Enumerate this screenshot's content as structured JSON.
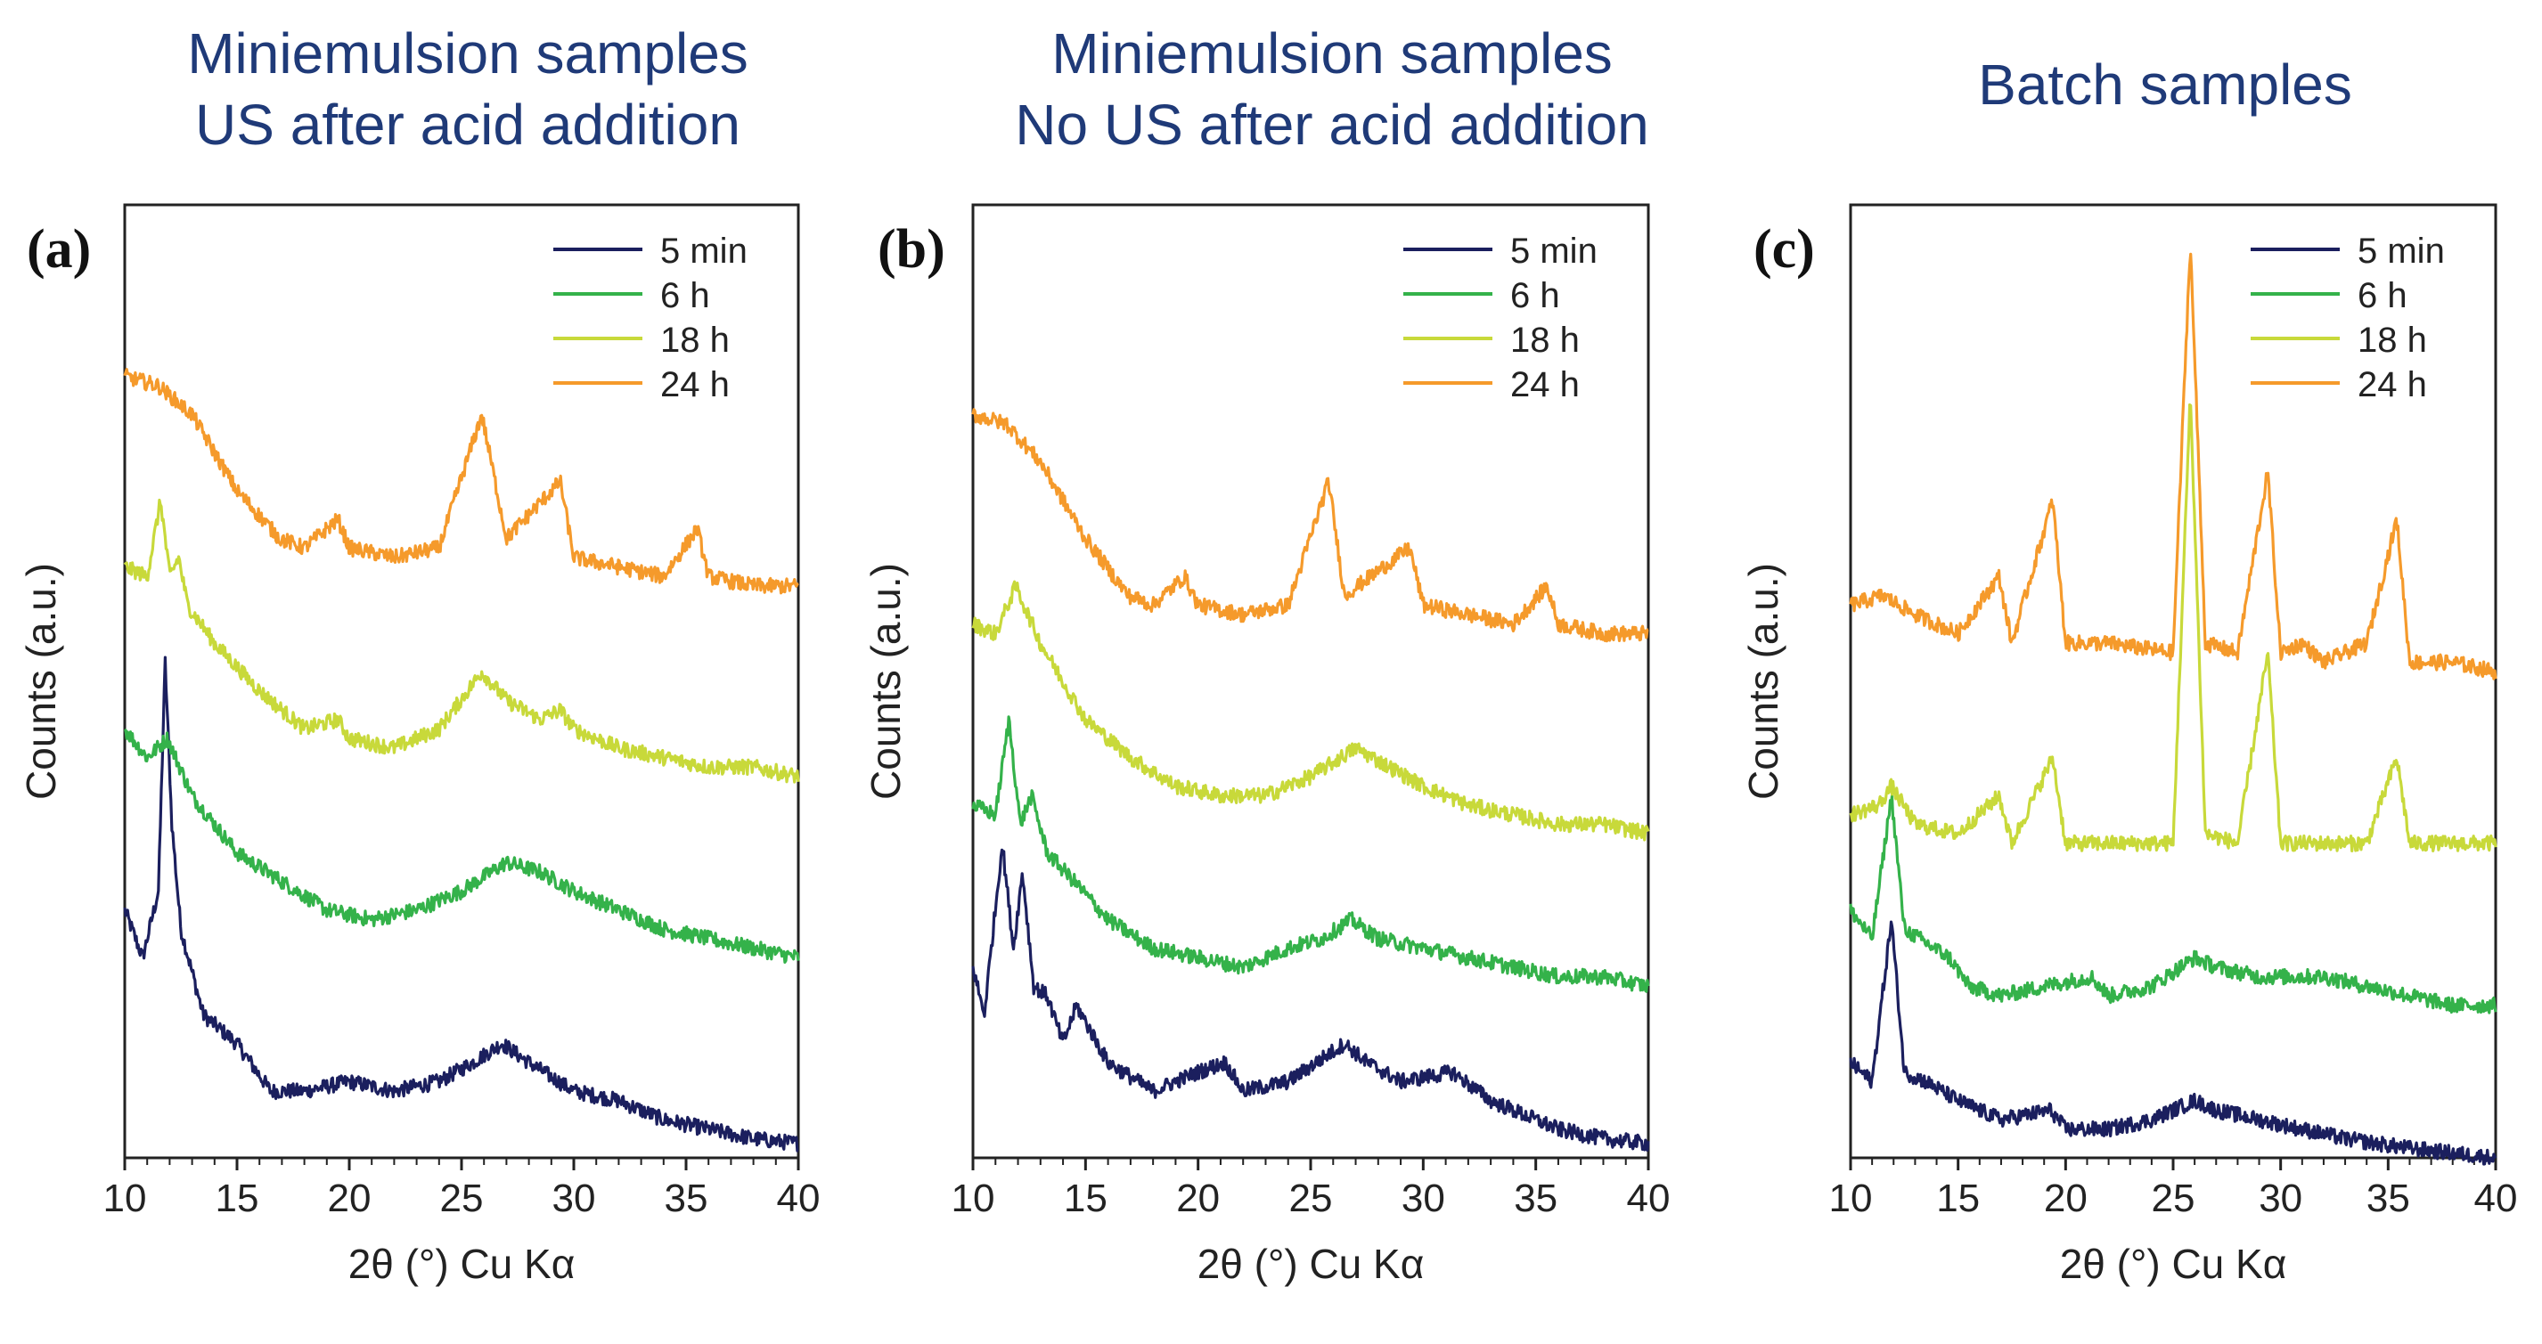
{
  "panels": [
    {
      "letter": "(a)",
      "title_lines": [
        "Miniemulsion samples",
        "US after acid addition"
      ],
      "xlabel": "2θ (°) Cu Kα",
      "ylabel": "Counts (a.u.)"
    },
    {
      "letter": "(b)",
      "title_lines": [
        "Miniemulsion samples",
        "No US after acid addition"
      ],
      "xlabel": "2θ (°) Cu Kα",
      "ylabel": "Counts (a.u.)"
    },
    {
      "letter": "(c)",
      "title_lines": [
        "Batch samples"
      ],
      "xlabel": "2θ (°) Cu Kα",
      "ylabel": "Counts (a.u.)"
    }
  ],
  "chart_data": [
    {
      "type": "line",
      "title": "Miniemulsion samples US after acid addition",
      "panel_label": "(a)",
      "xlabel": "2θ (°) Cu Kα",
      "ylabel": "Counts (a.u.)",
      "xlim": [
        10,
        40
      ],
      "ylim": [
        0,
        100
      ],
      "xticks": [
        10,
        15,
        20,
        25,
        30,
        35,
        40
      ],
      "legend": "top-right",
      "series": [
        {
          "name": "5 min",
          "color": "#1b1f5e",
          "x": [
            10,
            10.8,
            11.5,
            11.8,
            12.1,
            12.5,
            13.5,
            15,
            16.5,
            18,
            20,
            22,
            24,
            25.5,
            26.8,
            28,
            30,
            32,
            34,
            36,
            38,
            40
          ],
          "y": [
            26,
            21,
            28,
            52,
            35,
            24,
            15,
            12,
            7,
            7,
            8,
            7,
            8,
            10,
            12,
            10,
            7,
            6,
            4,
            3,
            2,
            1.5
          ]
        },
        {
          "name": "6 h",
          "color": "#34b24a",
          "x": [
            10,
            11,
            11.9,
            13,
            15,
            17,
            19,
            21,
            23,
            25,
            27,
            28.5,
            30,
            32,
            34,
            36,
            38,
            40
          ],
          "y": [
            45,
            42,
            44,
            38,
            32,
            29,
            26,
            25,
            26,
            28,
            31,
            30,
            28,
            26,
            24,
            23,
            22,
            21
          ]
        },
        {
          "name": "18 h",
          "color": "#c8d93a",
          "x": [
            10,
            11,
            11.6,
            12,
            12.4,
            12.8,
            14,
            16,
            18,
            19.5,
            20,
            22,
            24,
            25.9,
            27,
            28.5,
            29.4,
            30,
            32,
            34,
            36,
            38,
            40
          ],
          "y": [
            62,
            61,
            69,
            61,
            63,
            58,
            54,
            49,
            45,
            46,
            44,
            43,
            45,
            51,
            48,
            46,
            47,
            45,
            43,
            42,
            41,
            41,
            40
          ]
        },
        {
          "name": "24 h",
          "color": "#f59a2b",
          "x": [
            10,
            11.5,
            13,
            15,
            16.9,
            18,
            19.5,
            20,
            22,
            24,
            25.9,
            27,
            29.4,
            30,
            32,
            34,
            35.5,
            36,
            38,
            40
          ],
          "y": [
            82,
            81,
            78,
            70,
            65,
            64,
            67,
            64,
            63,
            64,
            78,
            65,
            71,
            63,
            62,
            61,
            66,
            61,
            60,
            60
          ]
        }
      ]
    },
    {
      "type": "line",
      "title": "Miniemulsion samples No US after acid addition",
      "panel_label": "(b)",
      "xlabel": "2θ (°) Cu Kα",
      "ylabel": "Counts (a.u.)",
      "xlim": [
        10,
        40
      ],
      "ylim": [
        0,
        100
      ],
      "xticks": [
        10,
        15,
        20,
        25,
        30,
        35,
        40
      ],
      "legend": "top-right",
      "series": [
        {
          "name": "5 min",
          "color": "#1b1f5e",
          "x": [
            10,
            10.5,
            11.3,
            11.8,
            12.2,
            12.7,
            13.3,
            14,
            14.6,
            16,
            18,
            20,
            21.2,
            22,
            24,
            26.5,
            27.5,
            29,
            31.3,
            33,
            36,
            38,
            40
          ],
          "y": [
            20,
            15,
            33,
            22,
            30,
            18,
            17,
            12,
            16,
            10,
            7,
            9,
            10,
            7,
            8,
            12,
            10,
            8,
            9,
            6,
            3,
            2,
            1.5
          ]
        },
        {
          "name": "6 h",
          "color": "#34b24a",
          "x": [
            10,
            11,
            11.6,
            12.1,
            12.6,
            13.3,
            14.5,
            16,
            18,
            20,
            22,
            24,
            25.5,
            26.8,
            28,
            30,
            32,
            34,
            36,
            38,
            40
          ],
          "y": [
            37,
            36,
            46,
            35,
            38,
            32,
            29,
            25,
            22,
            21,
            20,
            22,
            23,
            25,
            23,
            22,
            21,
            20,
            19,
            19,
            18
          ]
        },
        {
          "name": "18 h",
          "color": "#c8d93a",
          "x": [
            10,
            11,
            11.9,
            13,
            15,
            17,
            19,
            21,
            23,
            25,
            27,
            28.5,
            30,
            32,
            34,
            36,
            38,
            40
          ],
          "y": [
            56,
            55,
            60,
            54,
            46,
            42,
            39,
            38,
            38,
            40,
            43,
            41,
            39,
            37,
            36,
            35,
            35,
            34
          ]
        },
        {
          "name": "24 h",
          "color": "#f59a2b",
          "x": [
            10,
            11.5,
            13,
            15,
            16.9,
            18,
            19.4,
            20,
            22,
            24,
            25.8,
            26.5,
            29.4,
            30,
            32,
            34,
            35.5,
            36,
            38,
            40
          ],
          "y": [
            78,
            77,
            73,
            65,
            59,
            58,
            61,
            58,
            57,
            58,
            71,
            59,
            64,
            58,
            57,
            56,
            60,
            56,
            55,
            55
          ]
        }
      ]
    },
    {
      "type": "line",
      "title": "Batch samples",
      "panel_label": "(c)",
      "xlabel": "2θ (°) Cu Kα",
      "ylabel": "Counts (a.u.)",
      "xlim": [
        10,
        40
      ],
      "ylim": [
        0,
        100
      ],
      "xticks": [
        10,
        15,
        20,
        25,
        30,
        35,
        40
      ],
      "legend": "top-right",
      "series": [
        {
          "name": "5 min",
          "color": "#1b1f5e",
          "x": [
            10,
            11,
            11.9,
            12.5,
            13.5,
            15,
            17,
            19.3,
            20,
            22,
            24,
            26,
            27,
            29,
            31,
            33,
            36,
            38,
            40
          ],
          "y": [
            10,
            8,
            25,
            9,
            8,
            6,
            4,
            5,
            3,
            3,
            4,
            6,
            5,
            4,
            3,
            2,
            1,
            0.5,
            0
          ]
        },
        {
          "name": "6 h",
          "color": "#34b24a",
          "x": [
            10,
            11,
            11.9,
            12.5,
            14.6,
            15.5,
            17,
            19,
            21.2,
            22,
            24,
            26,
            27,
            29,
            30,
            32,
            34,
            36,
            38,
            40
          ],
          "y": [
            26,
            23,
            38,
            24,
            21,
            18,
            17,
            18,
            19,
            17,
            18,
            21,
            20,
            19,
            19,
            19,
            18,
            17,
            16,
            16
          ]
        },
        {
          "name": "18 h",
          "color": "#c8d93a",
          "x": [
            10,
            11.3,
            11.9,
            13,
            15,
            16.9,
            17.5,
            19.4,
            20,
            22,
            25,
            25.8,
            26.5,
            28,
            29.4,
            30,
            32,
            34,
            35.4,
            36,
            38,
            40
          ],
          "y": [
            36,
            37,
            39,
            35,
            34,
            38,
            33,
            42,
            33,
            33,
            33,
            80,
            34,
            33,
            53,
            33,
            33,
            33,
            42,
            33,
            33,
            33
          ]
        },
        {
          "name": "24 h",
          "color": "#f59a2b",
          "x": [
            10,
            11.5,
            13,
            15,
            16.9,
            17.5,
            19.4,
            20,
            22,
            25,
            25.8,
            26.5,
            28,
            29.4,
            30,
            31,
            32,
            34,
            35.4,
            36,
            38,
            40
          ],
          "y": [
            58,
            59,
            57,
            55,
            61,
            54,
            69,
            54,
            54,
            53,
            96,
            54,
            53,
            72,
            53,
            54,
            52,
            54,
            67,
            52,
            52,
            51
          ]
        }
      ]
    }
  ]
}
